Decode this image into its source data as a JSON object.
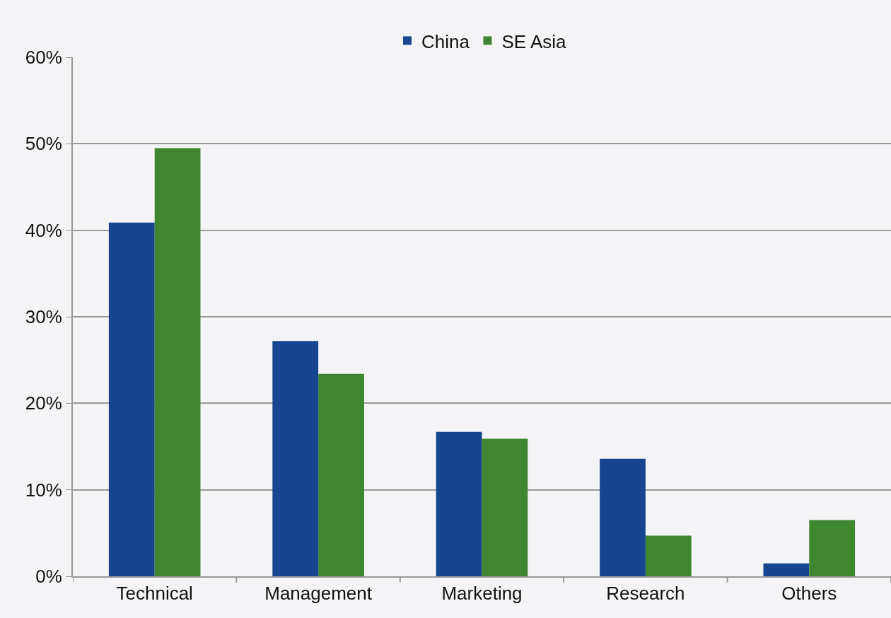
{
  "chart_data": {
    "type": "bar",
    "categories": [
      "Technical",
      "Management",
      "Marketing",
      "Research",
      "Others"
    ],
    "series": [
      {
        "name": "China",
        "color": "#15468f",
        "values": [
          40.9,
          27.2,
          16.7,
          13.6,
          1.5
        ]
      },
      {
        "name": "SE Asia",
        "color": "#3f8631",
        "values": [
          49.5,
          23.4,
          15.9,
          4.7,
          6.5
        ]
      }
    ],
    "ylim": [
      0,
      60
    ],
    "yticks": [
      {
        "value": 0,
        "label": "0%"
      },
      {
        "value": 10,
        "label": "10%"
      },
      {
        "value": 20,
        "label": "20%"
      },
      {
        "value": 30,
        "label": "30%"
      },
      {
        "value": 40,
        "label": "40%"
      },
      {
        "value": 50,
        "label": "50%"
      },
      {
        "value": 60,
        "label": "60%"
      }
    ],
    "grid": "y",
    "legend": "top"
  }
}
